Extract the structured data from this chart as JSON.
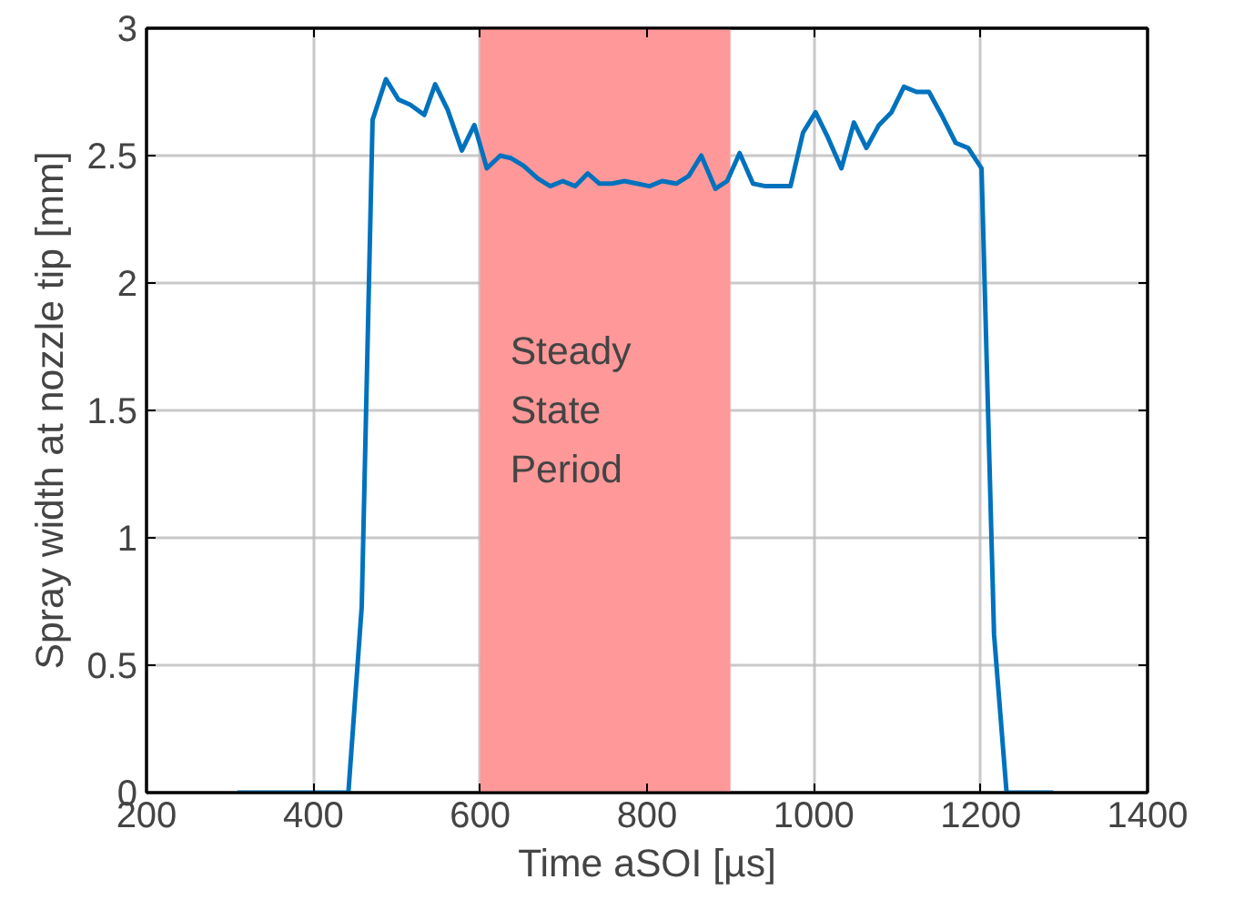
{
  "chart_data": {
    "type": "line",
    "xlabel": "Time aSOI [µs]",
    "ylabel": "Spray width at nozzle tip [mm]",
    "xlim": [
      200,
      1400
    ],
    "ylim": [
      0,
      3
    ],
    "xticks": [
      200,
      400,
      600,
      800,
      1000,
      1200,
      1400
    ],
    "yticks": [
      0,
      0.5,
      1,
      1.5,
      2,
      2.5,
      3
    ],
    "grid": true,
    "marker": "none",
    "line_style": "solid",
    "bands": [
      {
        "axis": "x",
        "from": 600,
        "to": 900,
        "label": "Steady\nState\nPeriod",
        "color": "#ff9999"
      }
    ],
    "series": [
      {
        "color": "#0072bd",
        "x": [
          309,
          442,
          458,
          471,
          487,
          502,
          516,
          533,
          546,
          561,
          578,
          593,
          608,
          624,
          637,
          652,
          669,
          684,
          699,
          714,
          729,
          743,
          758,
          773,
          788,
          803,
          818,
          835,
          850,
          865,
          882,
          896,
          911,
          927,
          942,
          957,
          972,
          987,
          1002,
          1017,
          1033,
          1048,
          1063,
          1078,
          1093,
          1108,
          1123,
          1138,
          1153,
          1170,
          1185,
          1201,
          1216,
          1231,
          1287
        ],
        "values": [
          0,
          0,
          0.73,
          2.64,
          2.8,
          2.72,
          2.7,
          2.66,
          2.78,
          2.68,
          2.52,
          2.62,
          2.45,
          2.5,
          2.49,
          2.46,
          2.41,
          2.38,
          2.4,
          2.38,
          2.43,
          2.39,
          2.39,
          2.4,
          2.39,
          2.38,
          2.4,
          2.39,
          2.42,
          2.5,
          2.37,
          2.4,
          2.51,
          2.39,
          2.38,
          2.38,
          2.38,
          2.59,
          2.67,
          2.57,
          2.45,
          2.63,
          2.53,
          2.62,
          2.67,
          2.77,
          2.75,
          2.75,
          2.66,
          2.55,
          2.53,
          2.45,
          0.62,
          0,
          0
        ]
      }
    ]
  }
}
